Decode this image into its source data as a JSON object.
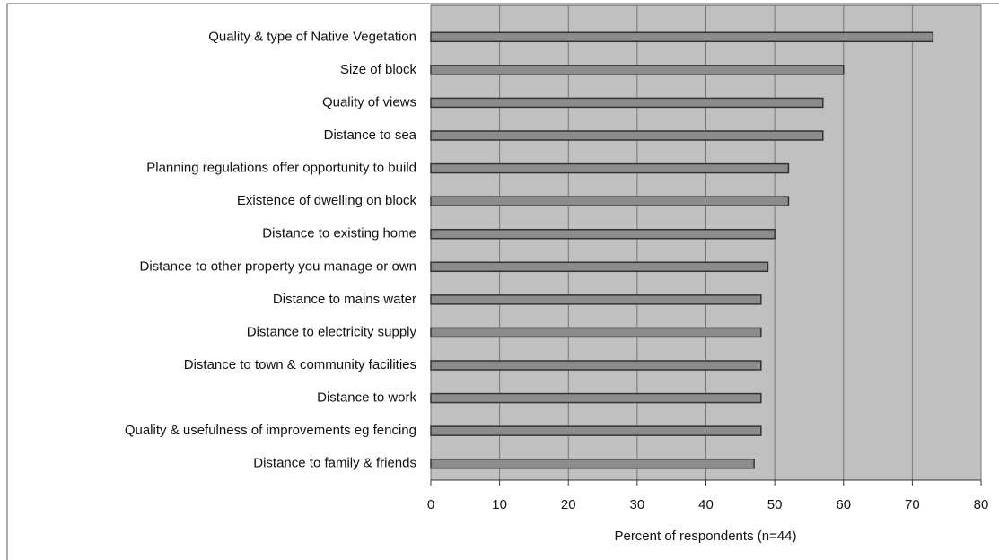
{
  "chart_data": {
    "type": "hbar",
    "xlabel": "Percent of respondents (n=44)",
    "categories": [
      "Quality & type of Native Vegetation",
      "Size of block",
      "Quality of views",
      "Distance to sea",
      "Planning regulations offer opportunity to build",
      "Existence of dwelling on block",
      "Distance to existing home",
      "Distance to other property you manage or own",
      "Distance to mains water",
      "Distance to electricity supply",
      "Distance to town & community facilities",
      "Distance to work",
      "Quality & usefulness of improvements eg fencing",
      "Distance to family & friends"
    ],
    "values": [
      73,
      60,
      57,
      57,
      52,
      52,
      50,
      49,
      48,
      48,
      48,
      48,
      48,
      47
    ],
    "color": "#8c8c8c",
    "xlim": [
      0,
      80
    ],
    "xticks": [
      0,
      10,
      20,
      30,
      40,
      50,
      60,
      70,
      80
    ],
    "grid": true
  }
}
